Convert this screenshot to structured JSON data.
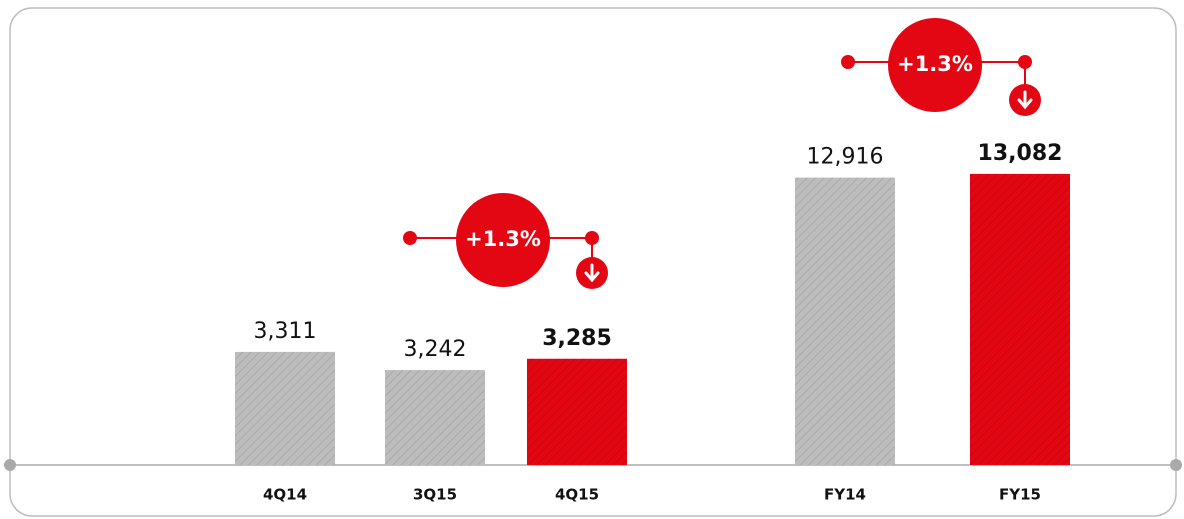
{
  "chart_data": [
    {
      "type": "bar",
      "categories": [
        "4Q14",
        "3Q15",
        "4Q15"
      ],
      "values": [
        3311,
        3242,
        3285
      ],
      "value_labels": [
        "3,311",
        "3,242",
        "3,285"
      ],
      "colors": [
        "#bdbdbd",
        "#bdbdbd",
        "#e30613"
      ],
      "ylim": [
        2880,
        4500
      ],
      "annotation": "+1.3%"
    },
    {
      "type": "bar",
      "categories": [
        "FY14",
        "FY15"
      ],
      "values": [
        12916,
        13082
      ],
      "value_labels": [
        "12,916",
        "13,082"
      ],
      "colors": [
        "#bdbdbd",
        "#e30613"
      ],
      "ylim": [
        0,
        19100
      ],
      "annotation": "+1.3%"
    }
  ]
}
